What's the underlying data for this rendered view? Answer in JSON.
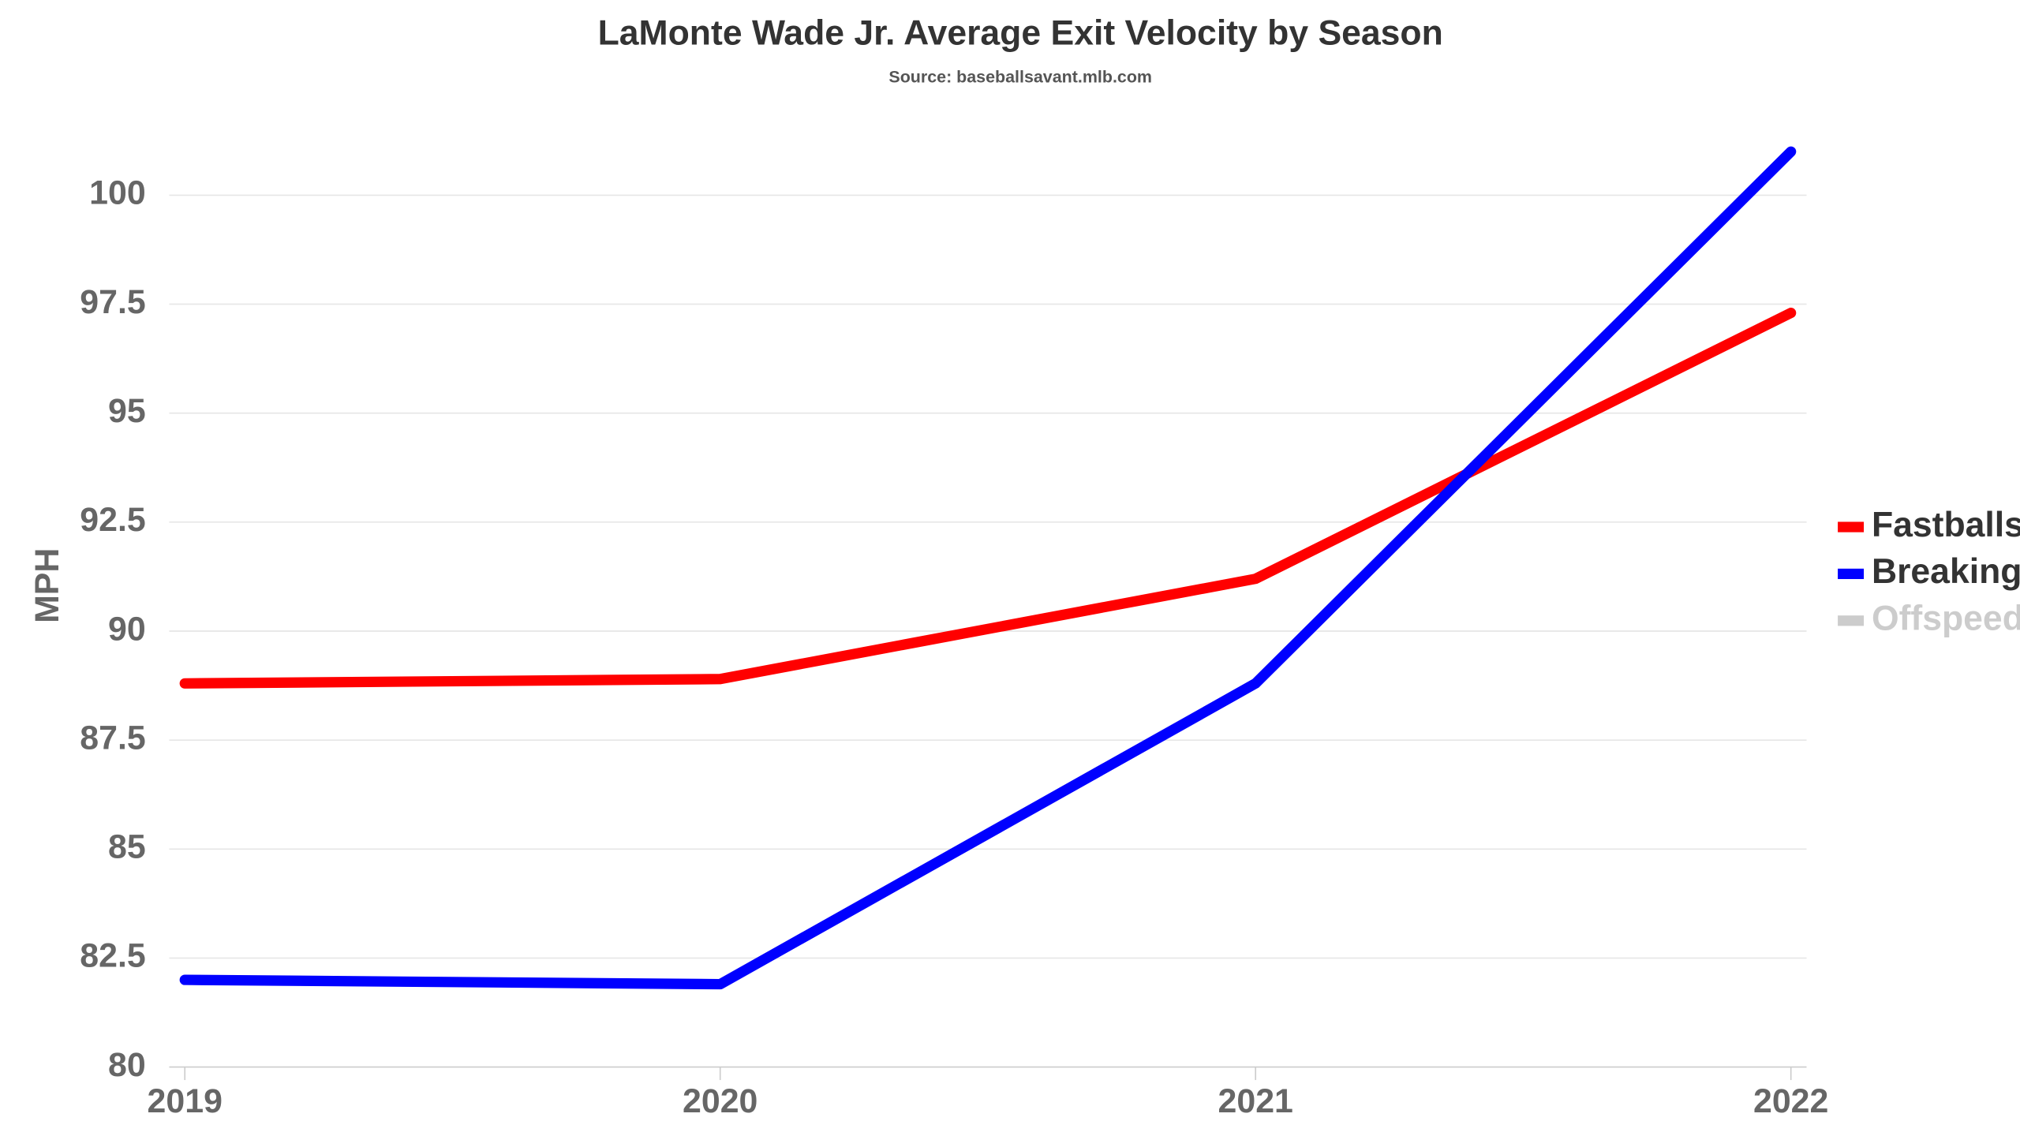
{
  "chart_data": {
    "type": "line",
    "title": "LaMonte Wade Jr. Average Exit Velocity by Season",
    "subtitle": "Source: baseballsavant.mlb.com",
    "y_label": "MPH",
    "categories": [
      "2019",
      "2020",
      "2021",
      "2022"
    ],
    "series": [
      {
        "name": "Fastballs",
        "color": "#ff0000",
        "values": [
          88.8,
          88.9,
          91.2,
          97.3
        ]
      },
      {
        "name": "Breaking",
        "color": "#0000ff",
        "values": [
          82.0,
          81.9,
          88.8,
          101.0
        ]
      },
      {
        "name": "Offspeed",
        "color": "#cccccc",
        "values": [
          null,
          null,
          null,
          null
        ]
      }
    ],
    "ylim": [
      80,
      102
    ],
    "yticks": [
      80,
      82.5,
      85,
      87.5,
      90,
      92.5,
      95,
      97.5,
      100
    ],
    "grid": true,
    "legend": "right"
  }
}
